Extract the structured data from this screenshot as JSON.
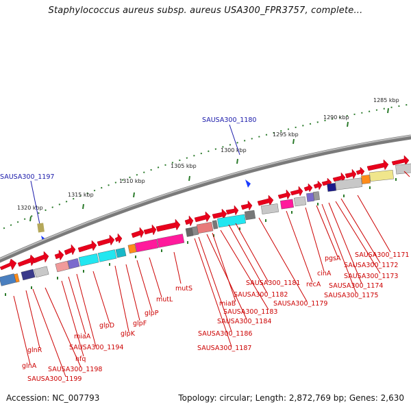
{
  "title": "Staphylococcus aureus subsp. aureus USA300_FPR3757, complete...",
  "footer": {
    "accession": "Accession: NC_007793",
    "summary": "Topology: circular; Length: 2,872,769 bp; Genes: 2,630"
  },
  "scale_ticks": [
    "1285 kbp",
    "1290 kbp",
    "1295 kbp",
    "1300 kbp",
    "1305 kbp",
    "1310 kbp",
    "1315 kbp",
    "1320 kbp"
  ],
  "loci": [
    "SAUSA300_1180",
    "SAUSA300_1197"
  ],
  "gene_labels": [
    "SAUSA300_1171",
    "SAUSA300_1172",
    "SAUSA300_1173",
    "SAUSA300_1174",
    "SAUSA300_1175",
    "pgsA",
    "cinA",
    "recA",
    "SAUSA300_1179",
    "SAUSA300_1181",
    "SAUSA300_1182",
    "SAUSA300_1183",
    "miaB",
    "SAUSA300_1184",
    "SAUSA300_1186",
    "SAUSA300_1187",
    "mutS",
    "mutL",
    "glpP",
    "glpF",
    "glpK",
    "glpD",
    "SAUSA300_1194",
    "miaA",
    "hfq",
    "SAUSA300_1198",
    "glnR",
    "glnA",
    "SAUSA300_1199"
  ],
  "colors": {
    "forward_gene": "#e8001c",
    "gene_label": "#cc0000",
    "locus_marker": "#1a1aaa",
    "backbone": "#777777",
    "tick": "#2a7a2a"
  }
}
